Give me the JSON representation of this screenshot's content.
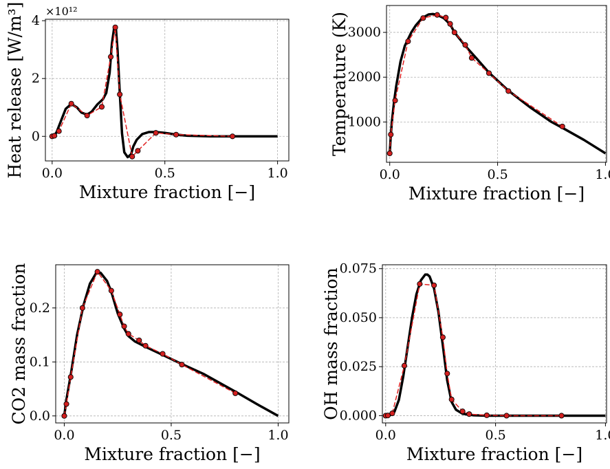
{
  "chart_data": [
    {
      "type": "line",
      "ylabel": "Heat release [W/m³]",
      "xlabel": "Mixture fraction [−]",
      "offset_text": "×10¹²",
      "xlim": [
        -0.03,
        1.05
      ],
      "ylim": [
        -0.85,
        4.05
      ],
      "xticks": [
        "0.0",
        "0.5",
        "1.0"
      ],
      "yticks": [
        "0",
        "2",
        "4"
      ],
      "ytick_values": [
        0,
        2,
        4
      ],
      "xtick_values": [
        0,
        0.5,
        1.0
      ],
      "colors": {
        "reference": "#000000",
        "prediction": "#e02020",
        "markers": "#d42020"
      },
      "series": [
        {
          "style": "solid-black",
          "x": [
            0,
            0.01,
            0.02,
            0.04,
            0.06,
            0.085,
            0.11,
            0.13,
            0.155,
            0.175,
            0.2,
            0.225,
            0.24,
            0.255,
            0.265,
            0.275,
            0.283,
            0.29,
            0.3,
            0.31,
            0.32,
            0.335,
            0.35,
            0.36,
            0.375,
            0.4,
            0.43,
            0.46,
            0.5,
            0.55,
            0.6,
            0.7,
            0.8,
            0.9,
            1.0
          ],
          "y": [
            0,
            0.02,
            0.15,
            0.55,
            0.95,
            1.12,
            1.0,
            0.82,
            0.75,
            0.85,
            1.1,
            1.28,
            1.5,
            2.2,
            3.2,
            3.75,
            3.72,
            3.0,
            1.5,
            0.1,
            -0.55,
            -0.72,
            -0.62,
            -0.35,
            -0.12,
            0.08,
            0.15,
            0.15,
            0.12,
            0.06,
            0.02,
            0.0,
            0.0,
            0.0,
            0.0
          ]
        },
        {
          "style": "dashed-red-markers",
          "x": [
            0,
            0.01,
            0.03,
            0.085,
            0.155,
            0.22,
            0.26,
            0.28,
            0.3,
            0.355,
            0.38,
            0.46,
            0.55,
            0.8
          ],
          "y": [
            0.0,
            0.02,
            0.18,
            1.13,
            0.72,
            1.02,
            2.75,
            3.77,
            1.45,
            -0.7,
            -0.5,
            0.12,
            0.06,
            0.0
          ]
        }
      ]
    },
    {
      "type": "line",
      "ylabel": "Temperature (K)",
      "xlabel": "Mixture fraction [−]",
      "xlim": [
        -0.015,
        1.005
      ],
      "ylim": [
        100,
        3600
      ],
      "xticks": [
        "0.0",
        "0.5",
        "1.0"
      ],
      "yticks": [
        "1000",
        "2000",
        "3000"
      ],
      "ytick_values": [
        1000,
        2000,
        3000
      ],
      "xtick_values": [
        0,
        0.5,
        1.0
      ],
      "series": [
        {
          "style": "solid-black",
          "x": [
            0,
            0.005,
            0.01,
            0.02,
            0.03,
            0.05,
            0.07,
            0.085,
            0.1,
            0.12,
            0.15,
            0.18,
            0.2,
            0.22,
            0.25,
            0.28,
            0.3,
            0.35,
            0.4,
            0.46,
            0.55,
            0.65,
            0.75,
            0.8,
            0.9,
            1.0
          ],
          "y": [
            300,
            700,
            1000,
            1450,
            1800,
            2350,
            2700,
            2850,
            3000,
            3150,
            3320,
            3400,
            3410,
            3390,
            3320,
            3180,
            3000,
            2700,
            2430,
            2100,
            1700,
            1330,
            1000,
            870,
            600,
            300
          ]
        },
        {
          "style": "dashed-red-markers",
          "x": [
            0,
            0.005,
            0.025,
            0.085,
            0.155,
            0.22,
            0.26,
            0.28,
            0.3,
            0.35,
            0.38,
            0.46,
            0.55,
            0.8
          ],
          "y": [
            300,
            720,
            1480,
            2800,
            3320,
            3390,
            3330,
            3190,
            3000,
            2720,
            2430,
            2090,
            1690,
            900
          ]
        }
      ]
    },
    {
      "type": "line",
      "ylabel": "CO2 mass fraction",
      "xlabel": "Mixture fraction [−]",
      "xlim": [
        -0.04,
        1.05
      ],
      "ylim": [
        -0.013,
        0.28
      ],
      "xticks": [
        "0.0",
        "0.5",
        "1.0"
      ],
      "yticks": [
        "0.0",
        "0.1",
        "0.2"
      ],
      "ytick_values": [
        0,
        0.1,
        0.2
      ],
      "xtick_values": [
        0,
        0.5,
        1.0
      ],
      "series": [
        {
          "style": "solid-black",
          "x": [
            0,
            0.01,
            0.03,
            0.06,
            0.09,
            0.12,
            0.15,
            0.17,
            0.2,
            0.22,
            0.25,
            0.28,
            0.3,
            0.33,
            0.38,
            0.46,
            0.55,
            0.65,
            0.8,
            0.9,
            1.0
          ],
          "y": [
            0,
            0.03,
            0.075,
            0.15,
            0.205,
            0.245,
            0.265,
            0.265,
            0.25,
            0.23,
            0.19,
            0.162,
            0.148,
            0.138,
            0.128,
            0.113,
            0.096,
            0.078,
            0.045,
            0.022,
            0.0
          ]
        },
        {
          "style": "dashed-red-markers",
          "x": [
            0,
            0.01,
            0.03,
            0.085,
            0.155,
            0.22,
            0.26,
            0.28,
            0.3,
            0.35,
            0.38,
            0.46,
            0.55,
            0.8
          ],
          "y": [
            0.0,
            0.022,
            0.072,
            0.2,
            0.267,
            0.232,
            0.188,
            0.166,
            0.152,
            0.14,
            0.13,
            0.115,
            0.095,
            0.042
          ]
        }
      ]
    },
    {
      "type": "line",
      "ylabel": "OH mass fraction",
      "xlabel": "Mixture fraction [−]",
      "xlim": [
        -0.015,
        1.005
      ],
      "ylim": [
        -0.0037,
        0.077
      ],
      "xticks": [
        "0.0",
        "0.5",
        "1.0"
      ],
      "yticks": [
        "0.000",
        "0.025",
        "0.050",
        "0.075"
      ],
      "ytick_values": [
        0,
        0.025,
        0.05,
        0.075
      ],
      "xtick_values": [
        0,
        0.5,
        1.0
      ],
      "series": [
        {
          "style": "solid-black",
          "x": [
            0,
            0.02,
            0.04,
            0.06,
            0.08,
            0.1,
            0.12,
            0.14,
            0.16,
            0.18,
            0.19,
            0.2,
            0.22,
            0.24,
            0.26,
            0.28,
            0.3,
            0.32,
            0.35,
            0.4,
            0.46,
            0.55,
            0.8,
            1.0
          ],
          "y": [
            0,
            0.0002,
            0.002,
            0.008,
            0.02,
            0.035,
            0.05,
            0.062,
            0.069,
            0.072,
            0.072,
            0.071,
            0.065,
            0.053,
            0.036,
            0.018,
            0.007,
            0.003,
            0.001,
            0.0002,
            0.0,
            0.0,
            0.0,
            0.0
          ]
        },
        {
          "style": "dashed-red-markers",
          "x": [
            0,
            0.01,
            0.03,
            0.085,
            0.155,
            0.22,
            0.26,
            0.28,
            0.3,
            0.35,
            0.38,
            0.46,
            0.55,
            0.8
          ],
          "y": [
            0.0,
            0.0001,
            0.0012,
            0.0255,
            0.0672,
            0.0665,
            0.04,
            0.0215,
            0.0083,
            0.0022,
            0.0008,
            0.0002,
            0.0,
            0.0
          ]
        }
      ]
    }
  ]
}
